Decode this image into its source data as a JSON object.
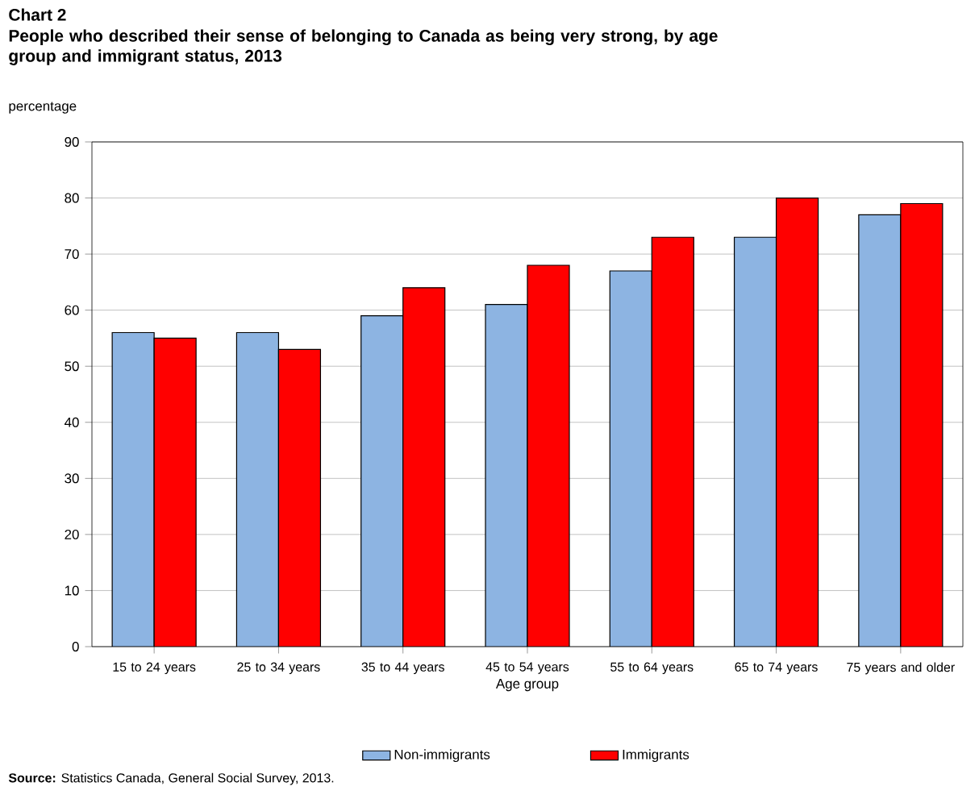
{
  "chart_data": {
    "type": "bar",
    "title": "Chart 2",
    "subtitle": "People who described their sense of belonging to Canada as being very strong, by age group and immigrant status, 2013",
    "ylabel": "percentage",
    "xlabel": "Age group",
    "categories": [
      "15 to 24 years",
      "25 to 34 years",
      "35 to 44 years",
      "45 to 54 years",
      "55 to 64 years",
      "65 to 74 years",
      "75 years and older"
    ],
    "series": [
      {
        "name": "Non-immigrants",
        "color": "#8db4e2",
        "values": [
          56,
          56,
          59,
          61,
          67,
          73,
          77
        ]
      },
      {
        "name": "Immigrants",
        "color": "#ff0000",
        "values": [
          55,
          53,
          64,
          68,
          73,
          80,
          79
        ]
      }
    ],
    "ylim": [
      0,
      90
    ],
    "yticks": [
      0,
      10,
      20,
      30,
      40,
      50,
      60,
      70,
      80,
      90
    ],
    "grid": "y",
    "legend": "bottom",
    "annotations": [
      "**Source:** Statistics Canada, General Social Survey, 2013."
    ]
  }
}
